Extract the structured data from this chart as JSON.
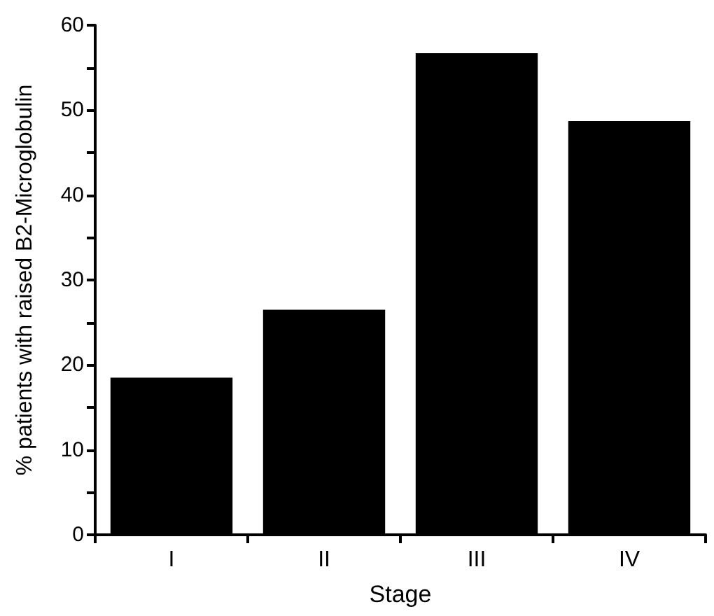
{
  "chart_data": {
    "type": "bar",
    "xlabel": "Stage",
    "ylabel": "% patients with raised B2-Microglobulin",
    "categories": [
      "I",
      "II",
      "III",
      "IV"
    ],
    "values": [
      18.5,
      26.5,
      56.7,
      48.7
    ],
    "color": "#000000",
    "ylim": [
      0,
      60
    ],
    "yticks": [
      0,
      {
        "value": 5,
        "label": null
      },
      10,
      {
        "value": 15,
        "label": null
      },
      20,
      {
        "value": 25,
        "label": null
      },
      30,
      {
        "value": 35,
        "label": null
      },
      40,
      {
        "value": 45,
        "label": null
      },
      50,
      {
        "value": 55,
        "label": null
      },
      60
    ],
    "grid": false
  }
}
